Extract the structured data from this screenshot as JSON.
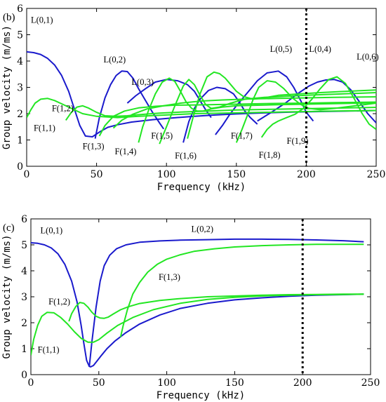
{
  "colors": {
    "L": "#1a1acc",
    "F": "#22e622",
    "marker": "#000000"
  },
  "chart_data": [
    {
      "panel": "(b)",
      "type": "line",
      "xlabel": "Frequency (kHz)",
      "ylabel": "Group velocity (m/ms)",
      "xlim": [
        0,
        250
      ],
      "ylim": [
        0,
        6
      ],
      "xticks": [
        0,
        50,
        100,
        150,
        200,
        250
      ],
      "yticks": [
        0,
        1,
        2,
        3,
        4,
        5,
        6
      ],
      "vline": 200,
      "series": [
        {
          "name": "L(0,1)",
          "family": "L",
          "x": [
            0,
            5,
            10,
            15,
            20,
            25,
            30,
            34,
            38,
            42,
            47,
            52,
            58,
            65,
            75,
            90,
            105,
            120,
            135,
            150,
            170,
            190,
            210,
            230,
            250
          ],
          "y": [
            4.35,
            4.32,
            4.25,
            4.1,
            3.85,
            3.45,
            2.85,
            2.2,
            1.55,
            1.15,
            1.12,
            1.3,
            1.48,
            1.58,
            1.68,
            1.77,
            1.84,
            1.9,
            1.95,
            1.99,
            2.03,
            2.06,
            2.08,
            2.1,
            2.12
          ]
        },
        {
          "name": "L(0,2)",
          "family": "L",
          "x": [
            49,
            52,
            56,
            60,
            64,
            68,
            72,
            76,
            80,
            85,
            90,
            95,
            98
          ],
          "y": [
            1.05,
            1.85,
            2.6,
            3.1,
            3.45,
            3.62,
            3.6,
            3.35,
            2.95,
            2.5,
            2.05,
            1.65,
            1.42
          ]
        },
        {
          "name": "L(0,3)",
          "family": "L",
          "x": [
            72,
            78,
            85,
            92,
            100,
            108,
            115,
            120,
            124,
            128,
            132
          ],
          "y": [
            2.4,
            2.68,
            2.95,
            3.2,
            3.3,
            3.25,
            3.1,
            2.85,
            2.5,
            2.15,
            1.85
          ]
        },
        {
          "name": "L(0,4)",
          "family": "L",
          "x": [
            112,
            116,
            120,
            124,
            130,
            136,
            142,
            148,
            152,
            156,
            160,
            165
          ],
          "y": [
            0.9,
            1.7,
            2.2,
            2.55,
            2.88,
            3.0,
            2.95,
            2.75,
            2.45,
            2.1,
            1.85,
            1.6
          ]
        },
        {
          "name": "L(0,5)",
          "family": "L",
          "x": [
            135,
            140,
            145,
            150,
            158,
            165,
            172,
            180,
            186,
            191,
            196,
            200,
            205
          ],
          "y": [
            1.2,
            1.55,
            1.95,
            2.3,
            2.8,
            3.25,
            3.55,
            3.62,
            3.4,
            3.0,
            2.5,
            2.05,
            1.72
          ]
        },
        {
          "name": "L(0,6)",
          "family": "L",
          "x": [
            165,
            175,
            185,
            195,
            202,
            208,
            214,
            220,
            226,
            232,
            238,
            244,
            250
          ],
          "y": [
            1.72,
            2.05,
            2.4,
            2.8,
            3.05,
            3.2,
            3.28,
            3.3,
            3.2,
            2.9,
            2.45,
            2.0,
            1.65
          ]
        },
        {
          "name": "F(1,1)",
          "family": "F",
          "x": [
            0,
            3,
            6,
            10,
            15,
            20,
            26,
            32,
            40,
            50,
            65,
            80,
            100,
            120,
            140,
            160,
            180,
            200,
            220,
            250
          ],
          "y": [
            1.85,
            2.15,
            2.4,
            2.55,
            2.58,
            2.5,
            2.35,
            2.2,
            2.0,
            1.9,
            1.85,
            1.9,
            1.95,
            2.0,
            2.02,
            2.04,
            2.06,
            2.08,
            2.1,
            2.12
          ]
        },
        {
          "name": "F(1,2)",
          "family": "F",
          "x": [
            28,
            32,
            36,
            40,
            44,
            50,
            56,
            64,
            72,
            80,
            95,
            110,
            130,
            150,
            170,
            190,
            210,
            230,
            250
          ],
          "y": [
            1.75,
            2.05,
            2.25,
            2.3,
            2.22,
            2.05,
            1.92,
            1.9,
            1.92,
            1.96,
            2.02,
            2.06,
            2.1,
            2.14,
            2.16,
            2.18,
            2.2,
            2.22,
            2.24
          ]
        },
        {
          "name": "F(1,3)",
          "family": "F",
          "x": [
            52,
            56,
            62,
            70,
            80,
            92,
            105,
            120,
            140,
            160,
            180,
            200,
            220,
            250
          ],
          "y": [
            1.15,
            1.55,
            1.9,
            2.1,
            2.22,
            2.28,
            2.32,
            2.33,
            2.35,
            2.37,
            2.39,
            2.4,
            2.42,
            2.44
          ]
        },
        {
          "name": "F(1,4)",
          "family": "F",
          "x": [
            62,
            68,
            76,
            86,
            98,
            110,
            125,
            140,
            160,
            180,
            200,
            220,
            250
          ],
          "y": [
            1.45,
            1.75,
            1.98,
            2.18,
            2.3,
            2.4,
            2.48,
            2.52,
            2.56,
            2.58,
            2.6,
            2.62,
            2.64
          ]
        },
        {
          "name": "F(1,5)",
          "family": "F",
          "x": [
            80,
            83,
            87,
            92,
            97,
            102,
            106,
            110,
            114,
            118,
            122,
            126,
            132,
            140,
            150,
            165,
            180,
            200,
            220,
            240,
            250
          ],
          "y": [
            0.9,
            1.5,
            2.1,
            2.75,
            3.2,
            3.35,
            3.22,
            2.85,
            2.45,
            2.2,
            2.1,
            2.1,
            2.18,
            2.25,
            2.3,
            2.32,
            2.34,
            2.36,
            2.38,
            2.4,
            2.42
          ]
        },
        {
          "name": "F(1,6)",
          "family": "F",
          "x": [
            95,
            100,
            106,
            112,
            116,
            120,
            124,
            128,
            132,
            138,
            146,
            156,
            170,
            185,
            200,
            220,
            250
          ],
          "y": [
            0.85,
            1.5,
            2.3,
            3.05,
            3.3,
            3.1,
            2.7,
            2.35,
            2.2,
            2.25,
            2.4,
            2.55,
            2.62,
            2.66,
            2.7,
            2.74,
            2.8
          ]
        },
        {
          "name": "F(1,7)",
          "family": "F",
          "x": [
            115,
            119,
            124,
            129,
            134,
            138,
            142,
            146,
            150,
            155,
            162,
            170,
            180,
            195,
            210,
            225,
            250
          ],
          "y": [
            1.05,
            1.85,
            2.75,
            3.4,
            3.58,
            3.52,
            3.35,
            3.1,
            2.85,
            2.65,
            2.55,
            2.6,
            2.7,
            2.75,
            2.8,
            2.84,
            2.9
          ]
        },
        {
          "name": "F(1,8)",
          "family": "F",
          "x": [
            150,
            154,
            158,
            162,
            166,
            172,
            178,
            184,
            190,
            196,
            202,
            210,
            220,
            235,
            250
          ],
          "y": [
            0.9,
            1.4,
            1.95,
            2.55,
            3.0,
            3.25,
            3.2,
            2.95,
            2.6,
            2.35,
            2.2,
            2.15,
            2.2,
            2.3,
            2.4
          ]
        },
        {
          "name": "F(1,9)",
          "family": "F",
          "x": [
            168,
            172,
            176,
            180,
            186,
            192,
            198,
            204,
            210,
            216,
            222,
            228,
            234,
            240,
            245,
            250
          ],
          "y": [
            1.1,
            1.4,
            1.6,
            1.72,
            1.85,
            1.98,
            2.2,
            2.55,
            2.95,
            3.3,
            3.4,
            3.15,
            2.6,
            2.0,
            1.6,
            1.4
          ]
        }
      ],
      "annotations": [
        {
          "text": "L(0,1)",
          "x": 3,
          "y": 5.45
        },
        {
          "text": "L(0,2)",
          "x": 55,
          "y": 3.95
        },
        {
          "text": "L(0,3)",
          "x": 75,
          "y": 3.1
        },
        {
          "text": "L(0,5)",
          "x": 174,
          "y": 4.35
        },
        {
          "text": "L(0,4)",
          "x": 202,
          "y": 4.35
        },
        {
          "text": "L(0,6)",
          "x": 236,
          "y": 4.05
        },
        {
          "text": "F(1,2)",
          "x": 18,
          "y": 2.1
        },
        {
          "text": "F(1,1)",
          "x": 5,
          "y": 1.35
        },
        {
          "text": "F(1,3)",
          "x": 40,
          "y": 0.65
        },
        {
          "text": "F(1,4)",
          "x": 63,
          "y": 0.45
        },
        {
          "text": "F(1,5)",
          "x": 89,
          "y": 1.05
        },
        {
          "text": "F(1,6)",
          "x": 106,
          "y": 0.3
        },
        {
          "text": "F(1,7)",
          "x": 146,
          "y": 1.05
        },
        {
          "text": "F(1,8)",
          "x": 166,
          "y": 0.32
        },
        {
          "text": "F(1,9)",
          "x": 186,
          "y": 0.85
        }
      ]
    },
    {
      "panel": "(c)",
      "type": "line",
      "xlabel": "Frequency (kHz)",
      "ylabel": "Group velocity (m/ms)",
      "xlim": [
        0,
        250
      ],
      "ylim": [
        0,
        6
      ],
      "xticks": [
        0,
        50,
        100,
        150,
        200,
        250
      ],
      "yticks": [
        0,
        1,
        2,
        3,
        4,
        5,
        6
      ],
      "vline": 200,
      "series": [
        {
          "name": "L(0,1)",
          "family": "L",
          "x": [
            0,
            5,
            10,
            15,
            20,
            25,
            30,
            34,
            37,
            39,
            41,
            43,
            44,
            46,
            48,
            52,
            56,
            62,
            70,
            80,
            95,
            110,
            130,
            150,
            170,
            190,
            210,
            230,
            245
          ],
          "y": [
            5.08,
            5.06,
            5.0,
            4.88,
            4.65,
            4.25,
            3.6,
            2.8,
            1.9,
            1.2,
            0.55,
            0.32,
            0.3,
            0.35,
            0.48,
            0.75,
            1.0,
            1.3,
            1.62,
            1.95,
            2.3,
            2.55,
            2.75,
            2.88,
            2.96,
            3.02,
            3.06,
            3.08,
            3.1
          ]
        },
        {
          "name": "L(0,2)",
          "family": "L",
          "x": [
            43,
            45,
            48,
            51,
            54,
            58,
            63,
            70,
            80,
            95,
            110,
            130,
            150,
            170,
            190,
            210,
            230,
            245
          ],
          "y": [
            0.3,
            1.3,
            2.6,
            3.6,
            4.2,
            4.6,
            4.85,
            5.0,
            5.1,
            5.15,
            5.18,
            5.2,
            5.22,
            5.22,
            5.21,
            5.19,
            5.16,
            5.12
          ]
        },
        {
          "name": "F(1,1)",
          "family": "F",
          "x": [
            0,
            2,
            5,
            8,
            12,
            17,
            22,
            27,
            32,
            37,
            42,
            46,
            50,
            56,
            64,
            75,
            90,
            110,
            130,
            150,
            170,
            190,
            210,
            230,
            245
          ],
          "y": [
            0.75,
            1.35,
            1.9,
            2.25,
            2.4,
            2.38,
            2.2,
            1.95,
            1.65,
            1.4,
            1.25,
            1.25,
            1.35,
            1.6,
            1.9,
            2.2,
            2.5,
            2.75,
            2.9,
            2.98,
            3.03,
            3.06,
            3.08,
            3.09,
            3.1
          ]
        },
        {
          "name": "F(1,2)",
          "family": "F",
          "x": [
            28,
            30,
            33,
            36,
            39,
            42,
            45,
            48,
            51,
            54,
            57,
            61,
            66,
            72,
            80,
            95,
            110,
            130,
            150,
            170,
            190,
            210,
            230,
            245
          ],
          "y": [
            2.05,
            2.35,
            2.62,
            2.78,
            2.75,
            2.6,
            2.4,
            2.25,
            2.18,
            2.17,
            2.22,
            2.35,
            2.5,
            2.62,
            2.74,
            2.86,
            2.93,
            3.0,
            3.03,
            3.06,
            3.08,
            3.09,
            3.1,
            3.1
          ]
        },
        {
          "name": "F(1,3)",
          "family": "F",
          "x": [
            66,
            68,
            71,
            75,
            80,
            86,
            93,
            100,
            110,
            120,
            135,
            150,
            170,
            190,
            210,
            230,
            245
          ],
          "y": [
            1.45,
            1.9,
            2.5,
            3.1,
            3.55,
            3.95,
            4.25,
            4.45,
            4.62,
            4.75,
            4.85,
            4.92,
            4.97,
            5.0,
            5.02,
            5.02,
            5.02
          ]
        }
      ],
      "annotations": [
        {
          "text": "L(0,1)",
          "x": 7,
          "y": 5.45
        },
        {
          "text": "L(0,2)",
          "x": 118,
          "y": 5.5
        },
        {
          "text": "F(1,3)",
          "x": 94,
          "y": 3.65
        },
        {
          "text": "F(1,2)",
          "x": 13,
          "y": 2.7
        },
        {
          "text": "F(1,1)",
          "x": 5,
          "y": 0.85
        }
      ]
    }
  ]
}
